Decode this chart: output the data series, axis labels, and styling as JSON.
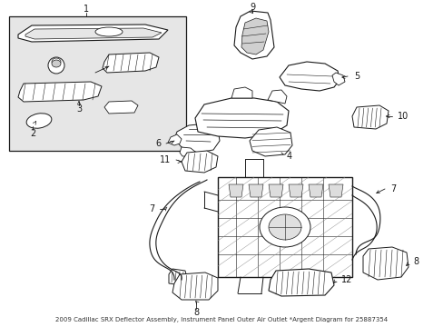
{
  "bg_color": "#ffffff",
  "line_color": "#1a1a1a",
  "box_fill": "#e8e8e8",
  "title_text": "2009 Cadillac SRX Deflector Assembly, Instrument Panel Outer Air Outlet *Argent\nDiagram for 25887354",
  "font_size": 7,
  "title_font_size": 6,
  "figsize": [
    4.89,
    3.6
  ],
  "dpi": 100
}
